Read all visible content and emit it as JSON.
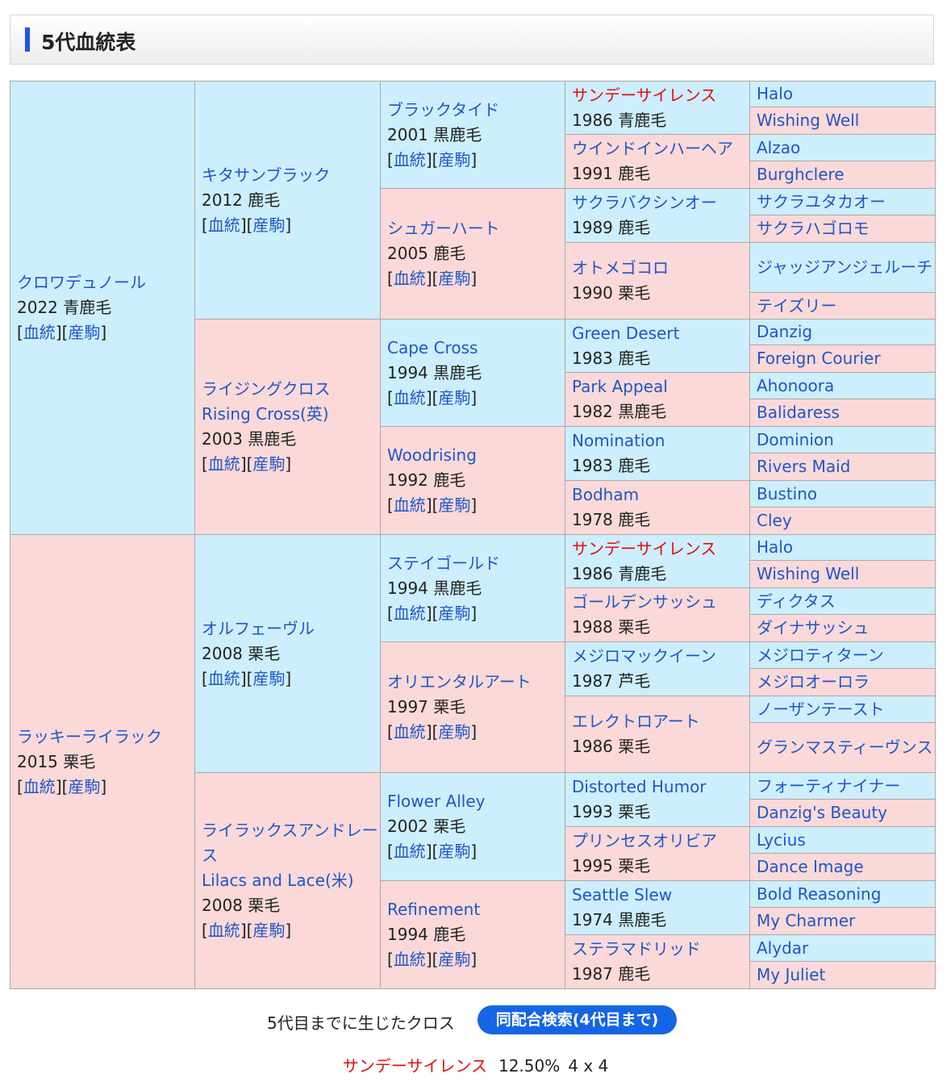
{
  "title": "5代血統表",
  "link_labels": {
    "pedigree": "血統",
    "offspring": "産駒"
  },
  "gen1": [
    {
      "name": "クロワデュノール",
      "info": "2022 青鹿毛"
    },
    {
      "name": "ラッキーライラック",
      "info": "2015 栗毛"
    }
  ],
  "gen2": [
    {
      "name": "キタサンブラック",
      "info": "2012 鹿毛"
    },
    {
      "name": "ライジングクロス",
      "name2": "Rising Cross(英)",
      "info": "2003 黒鹿毛"
    },
    {
      "name": "オルフェーヴル",
      "info": "2008 栗毛"
    },
    {
      "name": "ライラックスアンドレース",
      "name2": "Lilacs and Lace(米)",
      "info": "2008 栗毛"
    }
  ],
  "gen3": [
    {
      "name": "ブラックタイド",
      "info": "2001 黒鹿毛"
    },
    {
      "name": "シュガーハート",
      "info": "2005 鹿毛"
    },
    {
      "name": "Cape Cross",
      "info": "1994 黒鹿毛"
    },
    {
      "name": "Woodrising",
      "info": "1992 鹿毛"
    },
    {
      "name": "ステイゴールド",
      "info": "1994 黒鹿毛"
    },
    {
      "name": "オリエンタルアート",
      "info": "1997 栗毛"
    },
    {
      "name": "Flower Alley",
      "info": "2002 栗毛"
    },
    {
      "name": "Refinement",
      "info": "1994 鹿毛"
    }
  ],
  "gen4": [
    {
      "name": "サンデーサイレンス",
      "info": "1986 青鹿毛"
    },
    {
      "name": "ウインドインハーヘア",
      "info": "1991 鹿毛"
    },
    {
      "name": "サクラバクシンオー",
      "info": "1989 鹿毛"
    },
    {
      "name": "オトメゴコロ",
      "info": "1990 栗毛"
    },
    {
      "name": "Green Desert",
      "info": "1983 鹿毛"
    },
    {
      "name": "Park Appeal",
      "info": "1982 黒鹿毛"
    },
    {
      "name": "Nomination",
      "info": "1983 鹿毛"
    },
    {
      "name": "Bodham",
      "info": "1978 鹿毛"
    },
    {
      "name": "サンデーサイレンス",
      "info": "1986 青鹿毛"
    },
    {
      "name": "ゴールデンサッシュ",
      "info": "1988 栗毛"
    },
    {
      "name": "メジロマックイーン",
      "info": "1987 芦毛"
    },
    {
      "name": "エレクトロアート",
      "info": "1986 栗毛"
    },
    {
      "name": "Distorted Humor",
      "info": "1993 栗毛"
    },
    {
      "name": "プリンセスオリビア",
      "info": "1995 栗毛"
    },
    {
      "name": "Seattle Slew",
      "info": "1974 黒鹿毛"
    },
    {
      "name": "ステラマドリッド",
      "info": "1987 鹿毛"
    }
  ],
  "gen5": [
    "Halo",
    "Wishing Well",
    "Alzao",
    "Burghclere",
    "サクラユタカオー",
    "サクラハゴロモ",
    "ジャッジアンジェルーチ",
    "テイズリー",
    "Danzig",
    "Foreign Courier",
    "Ahonoora",
    "Balidaress",
    "Dominion",
    "Rivers Maid",
    "Bustino",
    "Cley",
    "Halo",
    "Wishing Well",
    "ディクタス",
    "ダイナサッシュ",
    "メジロティターン",
    "メジロオーロラ",
    "ノーザンテースト",
    "グランマスティーヴンス",
    "フォーティナイナー",
    "Danzig's Beauty",
    "Lycius",
    "Dance Image",
    "Bold Reasoning",
    "My Charmer",
    "Alydar",
    "My Juliet"
  ],
  "footer": {
    "cross_label": "5代目までに生じたクロス",
    "search_button": "同配合検索(4代目まで)",
    "cross_name": "サンデーサイレンス",
    "cross_percent": "12.50%",
    "cross_gen": "4 x 4"
  },
  "colors": {
    "male_bg": "#cdeefc",
    "female_bg": "#fbd9d9",
    "link": "#1f56c8",
    "highlight": "#e60c0c",
    "button": "#1565e6"
  }
}
